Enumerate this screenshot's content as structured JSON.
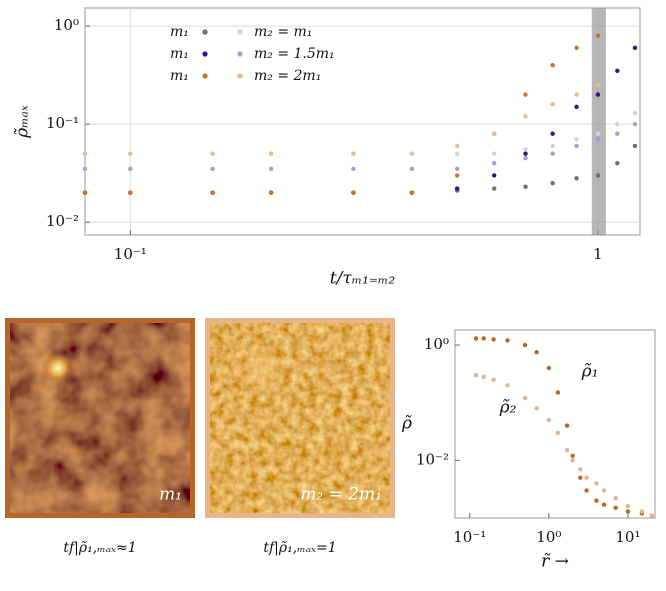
{
  "chart_data": [
    {
      "type": "scatter",
      "ylabel": "ρ̃ₘₐₓ",
      "xlabel": "t/τₘ₁₌ₘ₂",
      "log_x": true,
      "log_y": true,
      "grid": true,
      "xlim": [
        0.08,
        1.23
      ],
      "ylim": [
        0.0074,
        1.53
      ],
      "xticks": [
        {
          "value": 0.1,
          "label": "10⁻¹"
        },
        1
      ],
      "yticks": [
        {
          "value": 0.01,
          "label": "10⁻²"
        },
        {
          "value": 0.1,
          "label": "10⁻¹"
        },
        {
          "value": 1,
          "label": "10⁰"
        }
      ],
      "highlight_x": [
        0.97,
        1.04
      ],
      "series": [
        {
          "name": "m₁",
          "color": "#6e6e6e",
          "x": [
            0.08,
            0.1,
            0.15,
            0.2,
            0.3,
            0.4,
            0.5,
            0.6,
            0.7,
            0.8,
            0.9,
            1.0,
            1.1,
            1.2
          ],
          "values": [
            0.02,
            0.02,
            0.02,
            0.02,
            0.02,
            0.02,
            0.021,
            0.022,
            0.023,
            0.025,
            0.028,
            0.03,
            0.04,
            0.06
          ]
        },
        {
          "name": "m₂ = m₁",
          "color": "#d2d2d2",
          "x": [
            0.08,
            0.1,
            0.15,
            0.2,
            0.3,
            0.4,
            0.5,
            0.6,
            0.7,
            0.8,
            0.9,
            1.0,
            1.1,
            1.2
          ],
          "values": [
            0.05,
            0.05,
            0.05,
            0.05,
            0.05,
            0.05,
            0.05,
            0.05,
            0.055,
            0.06,
            0.07,
            0.08,
            0.1,
            0.13
          ]
        },
        {
          "name": "m₁",
          "color": "#3b0f86",
          "x": [
            0.08,
            0.1,
            0.15,
            0.2,
            0.3,
            0.4,
            0.5,
            0.6,
            0.7,
            0.8,
            0.9,
            1.0,
            1.1,
            1.2
          ],
          "values": [
            0.02,
            0.02,
            0.02,
            0.02,
            0.02,
            0.02,
            0.022,
            0.03,
            0.05,
            0.08,
            0.15,
            0.2,
            0.35,
            0.6
          ]
        },
        {
          "name": "m₂ = 1.5m₁",
          "color": "#a99ad8",
          "x": [
            0.08,
            0.1,
            0.15,
            0.2,
            0.3,
            0.4,
            0.5,
            0.6,
            0.7,
            0.8,
            0.9,
            1.0,
            1.1,
            1.2
          ],
          "values": [
            0.035,
            0.035,
            0.035,
            0.035,
            0.035,
            0.035,
            0.035,
            0.04,
            0.045,
            0.05,
            0.06,
            0.07,
            0.08,
            0.1
          ]
        },
        {
          "name": "m₁",
          "color": "#d2702a",
          "x": [
            0.08,
            0.1,
            0.15,
            0.2,
            0.3,
            0.4,
            0.5,
            0.6,
            0.7,
            0.8,
            0.9,
            1.0
          ],
          "values": [
            0.02,
            0.02,
            0.02,
            0.02,
            0.02,
            0.02,
            0.03,
            0.08,
            0.2,
            0.4,
            0.6,
            0.8
          ]
        },
        {
          "name": "m₂ = 2m₁",
          "color": "#eab893",
          "x": [
            0.08,
            0.1,
            0.15,
            0.2,
            0.3,
            0.4,
            0.5,
            0.6,
            0.7,
            0.8,
            0.9,
            1.0
          ],
          "values": [
            0.05,
            0.05,
            0.05,
            0.05,
            0.05,
            0.05,
            0.06,
            0.08,
            0.12,
            0.16,
            0.2,
            0.25
          ]
        }
      ]
    },
    {
      "type": "scatter",
      "ylabel": "ρ̃",
      "xlabel": "r̃ →",
      "log_x": true,
      "log_y": true,
      "grid": false,
      "xlim": [
        0.065,
        22
      ],
      "ylim": [
        0.001,
        1.82
      ],
      "xticks": [
        {
          "value": 0.1,
          "label": "10⁻¹"
        },
        {
          "value": 1,
          "label": "10⁰"
        },
        {
          "value": 10,
          "label": "10¹"
        }
      ],
      "yticks": [
        {
          "value": 0.01,
          "label": "10⁻²"
        },
        {
          "value": 1,
          "label": "10⁰"
        }
      ],
      "series": [
        {
          "name": "ρ̃₁",
          "color": "#c0651e",
          "x": [
            0.12,
            0.15,
            0.2,
            0.3,
            0.5,
            0.7,
            1,
            1.3,
            1.7,
            2,
            2.5,
            3,
            4,
            5,
            7,
            10,
            15,
            20
          ],
          "values": [
            1.3,
            1.3,
            1.25,
            1.2,
            1.0,
            0.75,
            0.4,
            0.15,
            0.04,
            0.012,
            0.005,
            0.003,
            0.002,
            0.0017,
            0.0015,
            0.0013,
            0.0012,
            0.0011
          ]
        },
        {
          "name": "ρ̃₂",
          "color": "#e2b48e",
          "x": [
            0.12,
            0.15,
            0.2,
            0.3,
            0.5,
            0.7,
            1,
            1.3,
            1.7,
            2,
            2.5,
            3,
            4,
            5,
            7,
            10,
            15,
            20
          ],
          "values": [
            0.3,
            0.28,
            0.25,
            0.2,
            0.12,
            0.08,
            0.05,
            0.03,
            0.015,
            0.01,
            0.007,
            0.005,
            0.004,
            0.003,
            0.0022,
            0.0016,
            0.0013,
            0.0011
          ]
        }
      ]
    }
  ],
  "panels": [
    {
      "label": "m₁",
      "caption": "tf|ρ̃₁,ₘₐₓ≈1"
    },
    {
      "label": "m₂ = 2m₁",
      "caption": "tf|ρ̃₁,ₘₐₓ=1"
    }
  ]
}
